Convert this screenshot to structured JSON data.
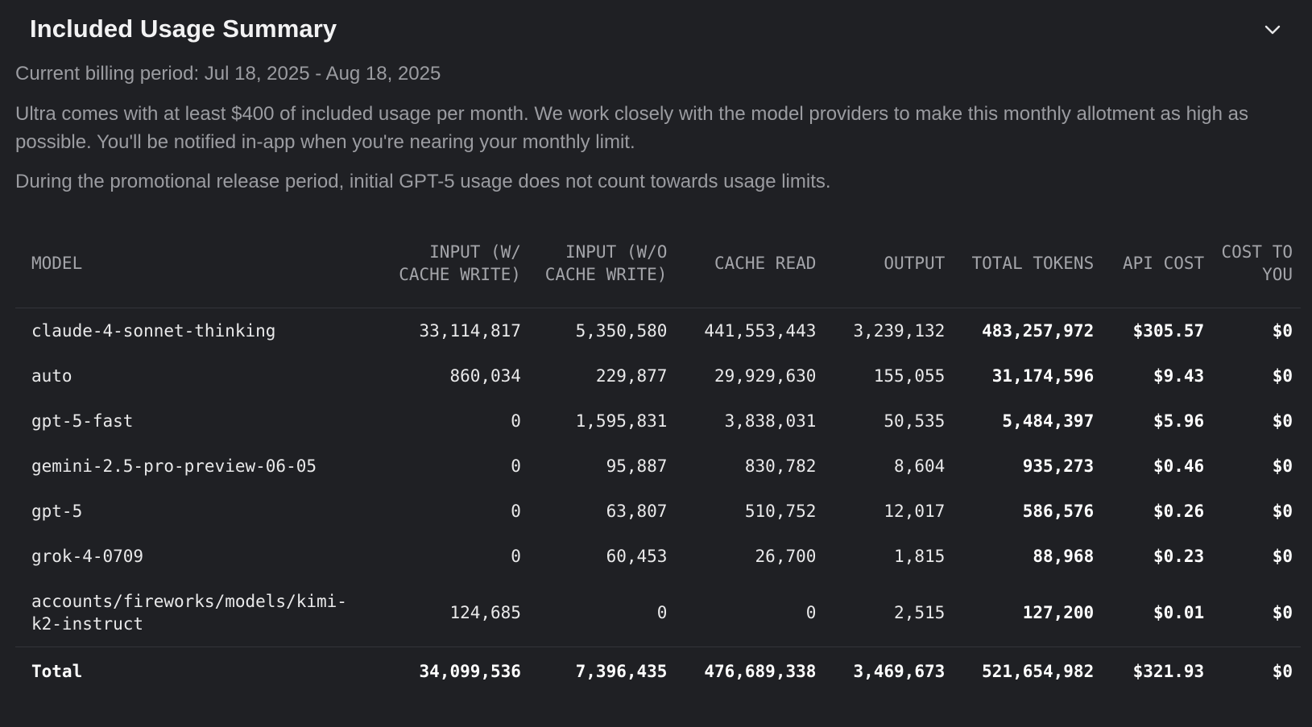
{
  "header": {
    "title": "Included Usage Summary",
    "collapse_icon": "chevron-down-icon"
  },
  "billing_period": "Current billing period: Jul 18, 2025 - Aug 18, 2025",
  "description": "Ultra comes with at least $400 of included usage per month. We work closely with the model providers to make this monthly allotment as high as possible. You'll be notified in-app when you're nearing your monthly limit.",
  "promo_note": "During the promotional release period, initial GPT-5 usage does not count towards usage limits.",
  "table": {
    "columns": [
      "MODEL",
      "INPUT (W/ CACHE WRITE)",
      "INPUT (W/O CACHE WRITE)",
      "CACHE READ",
      "OUTPUT",
      "TOTAL TOKENS",
      "API COST",
      "COST TO YOU"
    ],
    "rows": [
      [
        "claude-4-sonnet-thinking",
        "33,114,817",
        "5,350,580",
        "441,553,443",
        "3,239,132",
        "483,257,972",
        "$305.57",
        "$0"
      ],
      [
        "auto",
        "860,034",
        "229,877",
        "29,929,630",
        "155,055",
        "31,174,596",
        "$9.43",
        "$0"
      ],
      [
        "gpt-5-fast",
        "0",
        "1,595,831",
        "3,838,031",
        "50,535",
        "5,484,397",
        "$5.96",
        "$0"
      ],
      [
        "gemini-2.5-pro-preview-06-05",
        "0",
        "95,887",
        "830,782",
        "8,604",
        "935,273",
        "$0.46",
        "$0"
      ],
      [
        "gpt-5",
        "0",
        "63,807",
        "510,752",
        "12,017",
        "586,576",
        "$0.26",
        "$0"
      ],
      [
        "grok-4-0709",
        "0",
        "60,453",
        "26,700",
        "1,815",
        "88,968",
        "$0.23",
        "$0"
      ],
      [
        "accounts/fireworks/models/kimi-k2-instruct",
        "124,685",
        "0",
        "0",
        "2,515",
        "127,200",
        "$0.01",
        "$0"
      ]
    ],
    "total": [
      "Total",
      "34,099,536",
      "7,396,435",
      "476,689,338",
      "3,469,673",
      "521,654,982",
      "$321.93",
      "$0"
    ]
  }
}
